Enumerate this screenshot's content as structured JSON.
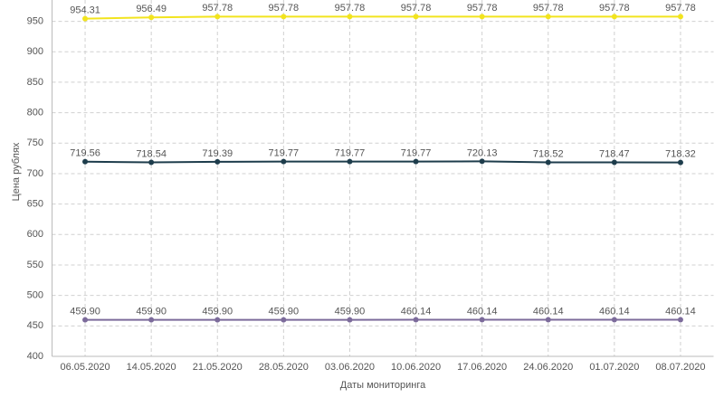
{
  "chart_data": {
    "type": "line",
    "x_label": "Даты мониторинга",
    "y_label": "Цена рублях",
    "categories": [
      "06.05.2020",
      "14.05.2020",
      "21.05.2020",
      "28.05.2020",
      "03.06.2020",
      "10.06.2020",
      "17.06.2020",
      "24.06.2020",
      "01.07.2020",
      "08.07.2020"
    ],
    "series": [
      {
        "color": "#f2e41e",
        "values": [
          954.31,
          956.49,
          957.78,
          957.78,
          957.78,
          957.78,
          957.78,
          957.78,
          957.78,
          957.78
        ]
      },
      {
        "color": "#1e3d4c",
        "values": [
          719.56,
          718.54,
          719.39,
          719.77,
          719.77,
          719.77,
          720.13,
          718.52,
          718.47,
          718.32
        ]
      },
      {
        "color": "#7c6b9b",
        "values": [
          459.9,
          459.9,
          459.9,
          459.9,
          459.9,
          460.14,
          460.14,
          460.14,
          460.14,
          460.14
        ],
        "value_labels": [
          "459.90",
          "459.90",
          "459.90",
          "459.90",
          "459.90",
          "460.14",
          "460.14",
          "460.14",
          "460.14",
          "460.14"
        ]
      }
    ],
    "ylim": [
      400,
      985
    ],
    "yticks": [
      400,
      450,
      500,
      550,
      600,
      650,
      700,
      750,
      800,
      850,
      900,
      950
    ],
    "grid": true
  }
}
